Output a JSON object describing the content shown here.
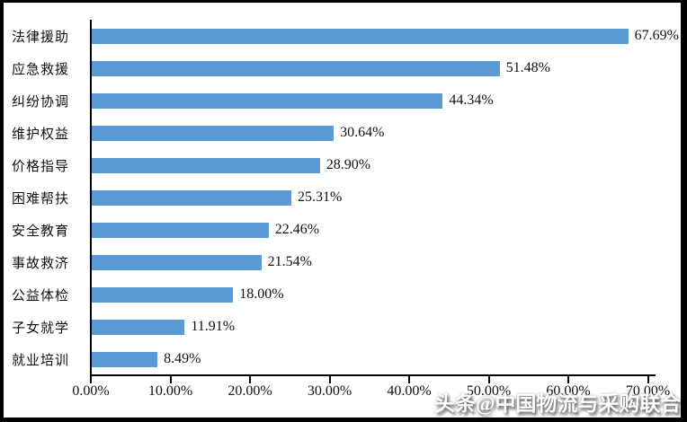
{
  "chart_data": {
    "type": "bar",
    "orientation": "horizontal",
    "title": "",
    "xlabel": "",
    "ylabel": "",
    "categories": [
      "法律援助",
      "应急救援",
      "纠纷协调",
      "维护权益",
      "价格指导",
      "困难帮扶",
      "安全教育",
      "事故救济",
      "公益体检",
      "子女就学",
      "就业培训"
    ],
    "values": [
      67.69,
      51.48,
      44.34,
      30.64,
      28.9,
      25.31,
      22.46,
      21.54,
      18.0,
      11.91,
      8.49
    ],
    "value_labels": [
      "67.69%",
      "51.48%",
      "44.34%",
      "30.64%",
      "28.90%",
      "25.31%",
      "22.46%",
      "21.54%",
      "18.00%",
      "11.91%",
      "8.49%"
    ],
    "xlim": [
      0,
      70
    ],
    "x_tick_labels": [
      "0.00%",
      "10.00%",
      "20.00%",
      "30.00%",
      "40.00%",
      "50.00%",
      "60.00%",
      "70.00%"
    ],
    "grid": false,
    "legend": false,
    "bar_color": "#5B9BD5",
    "axis_color": "#000000",
    "text_color": "#111111",
    "background_color": "#FFFFFF"
  },
  "watermark": {
    "text": "头条@中国物流与采购联合会"
  }
}
